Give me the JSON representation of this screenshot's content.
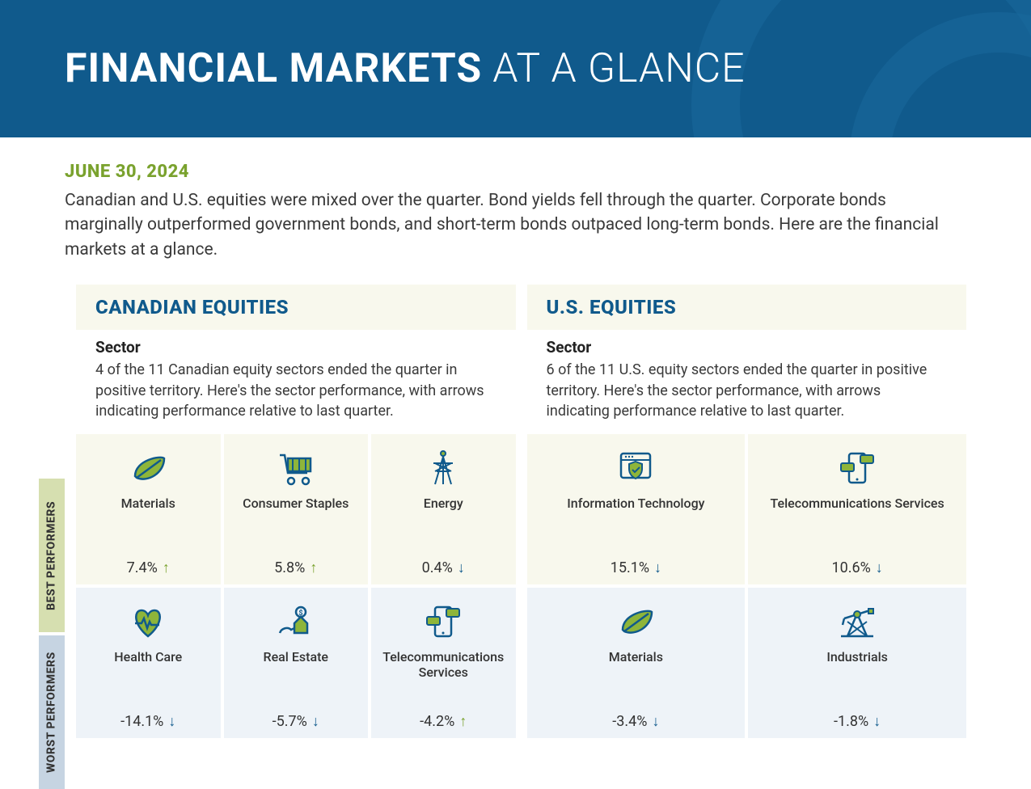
{
  "colors": {
    "banner_bg": "#105a8c",
    "accent_green": "#7aa22e",
    "accent_blue": "#105a8c",
    "best_bg": "#f8f8ed",
    "worst_bg": "#eef3f8",
    "best_label_bg": "#d6dfb0",
    "worst_label_bg": "#c6d4e2",
    "text": "#3a3a3a"
  },
  "banner": {
    "title_bold": "FINANCIAL MARKETS",
    "title_light": " AT A GLANCE"
  },
  "date": "JUNE 30, 2024",
  "intro": "Canadian and U.S. equities were mixed over the quarter. Bond yields fell through the quarter. Corporate bonds marginally outperformed government bonds, and short-term bonds outpaced long-term bonds. Here are the financial markets at a glance.",
  "side_labels": {
    "best": "BEST PERFORMERS",
    "worst": "WORST PERFORMERS"
  },
  "panels": {
    "ca": {
      "title": "CANADIAN EQUITIES",
      "sector_label": "Sector",
      "desc": "4 of the 11 Canadian equity sectors ended the quarter in positive territory. Here's the sector performance, with arrows indicating performance relative to last quarter.",
      "best": [
        {
          "icon": "leaf",
          "name": "Materials",
          "value": "7.4%",
          "dir": "up"
        },
        {
          "icon": "cart",
          "name": "Consumer Staples",
          "value": "5.8%",
          "dir": "up"
        },
        {
          "icon": "tower",
          "name": "Energy",
          "value": "0.4%",
          "dir": "down"
        }
      ],
      "worst": [
        {
          "icon": "heart",
          "name": "Health Care",
          "value": "-14.1%",
          "dir": "down"
        },
        {
          "icon": "house",
          "name": "Real Estate",
          "value": "-5.7%",
          "dir": "down"
        },
        {
          "icon": "phone",
          "name": "Telecommunications Services",
          "value": "-4.2%",
          "dir": "up"
        }
      ]
    },
    "us": {
      "title": "U.S. EQUITIES",
      "sector_label": "Sector",
      "desc": "6 of the 11 U.S. equity sectors ended the quarter in positive territory. Here's the sector performance, with arrows indicating performance relative to last quarter.",
      "best": [
        {
          "icon": "shield",
          "name": "Information Technology",
          "value": "15.1%",
          "dir": "down"
        },
        {
          "icon": "phone",
          "name": "Telecommunications Services",
          "value": "10.6%",
          "dir": "down"
        }
      ],
      "worst": [
        {
          "icon": "leaf",
          "name": "Materials",
          "value": "-3.4%",
          "dir": "down"
        },
        {
          "icon": "pump",
          "name": "Industrials",
          "value": "-1.8%",
          "dir": "down"
        }
      ]
    }
  },
  "icon_colors": {
    "stroke": "#105a8c",
    "fill": "#8eb53a"
  }
}
